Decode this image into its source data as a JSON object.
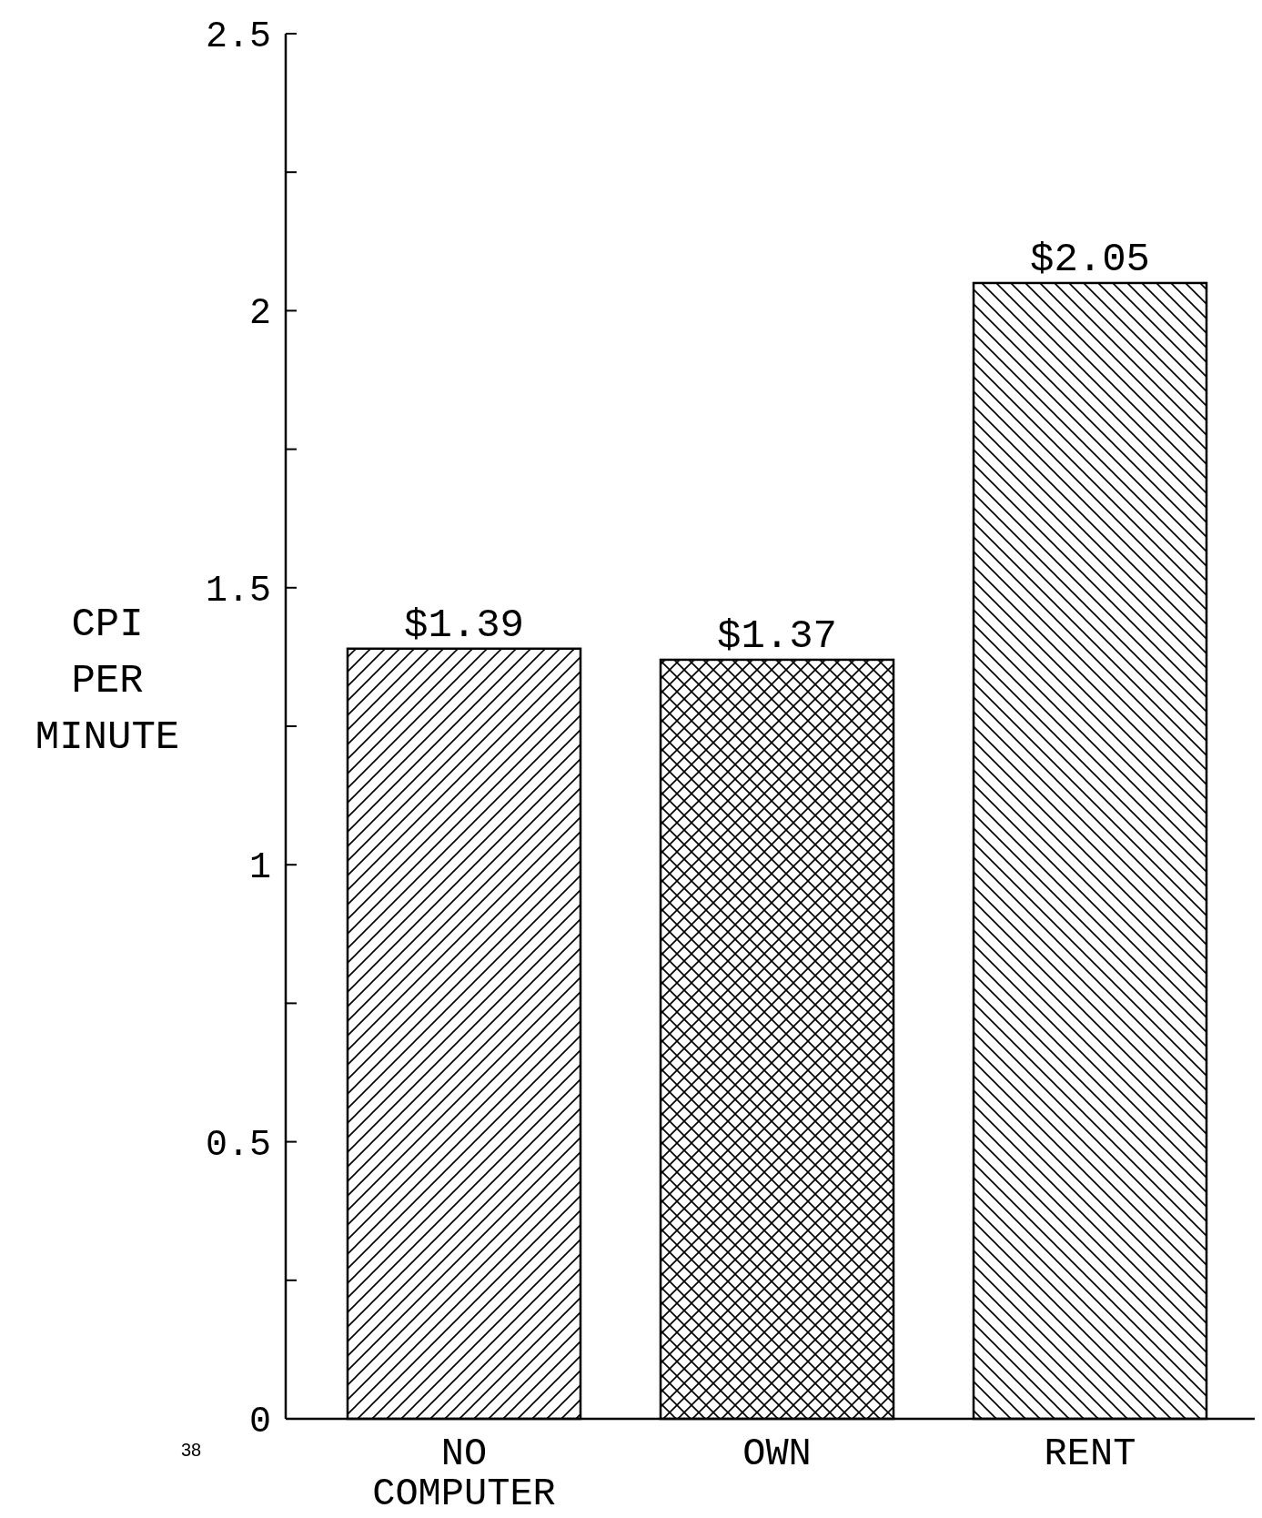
{
  "chart_data": {
    "type": "bar",
    "ylabel": "CPI PER MINUTE",
    "categories": [
      "NO COMPUTER",
      "OWN",
      "RENT"
    ],
    "values": [
      1.39,
      1.37,
      2.05
    ],
    "value_labels": [
      "$1.39",
      "$1.37",
      "$2.05"
    ],
    "colors": [
      "#000000",
      "#000000",
      "#000000"
    ],
    "ylim": [
      0,
      2.5
    ],
    "yticks": [
      0,
      {
        "value": 0.25,
        "label": null
      },
      0.5,
      {
        "value": 0.75,
        "label": null
      },
      1,
      {
        "value": 1.25,
        "label": null
      },
      1.5,
      {
        "value": 1.75,
        "label": null
      },
      2,
      {
        "value": 2.25,
        "label": null
      },
      2.5
    ],
    "grid": false,
    "annotations": [
      "38"
    ]
  }
}
